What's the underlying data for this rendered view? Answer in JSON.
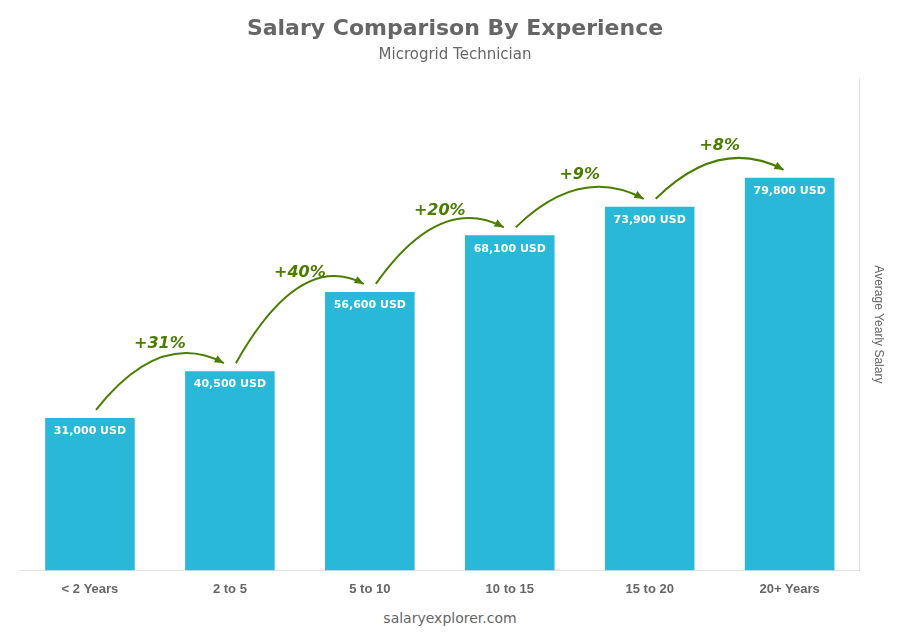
{
  "chart_data": {
    "type": "bar",
    "title": "Salary Comparison By Experience",
    "subtitle": "Microgrid Technician",
    "y_label": "Average Yearly Salary",
    "footer": "salaryexplorer.com",
    "categories": [
      "< 2 Years",
      "2 to 5",
      "5 to 10",
      "10 to 15",
      "15 to 20",
      "20+ Years"
    ],
    "values": [
      31000,
      40500,
      56600,
      68100,
      73900,
      79800
    ],
    "value_labels": [
      "31,000 USD",
      "40,500 USD",
      "56,600 USD",
      "68,100 USD",
      "73,900 USD",
      "79,800 USD"
    ],
    "data_labels": true,
    "color": "#29b8d8",
    "annotations": [
      {
        "text": "+31%",
        "from": "< 2 Years",
        "to": "2 to 5"
      },
      {
        "text": "+40%",
        "from": "2 to 5",
        "to": "5 to 10"
      },
      {
        "text": "+20%",
        "from": "5 to 10",
        "to": "10 to 15"
      },
      {
        "text": "+9%",
        "from": "10 to 15",
        "to": "15 to 20"
      },
      {
        "text": "+8%",
        "from": "15 to 20",
        "to": "20+ Years"
      }
    ],
    "ylim": [
      0,
      100000
    ],
    "tick_labels": "x",
    "grid": false,
    "legend": false
  }
}
